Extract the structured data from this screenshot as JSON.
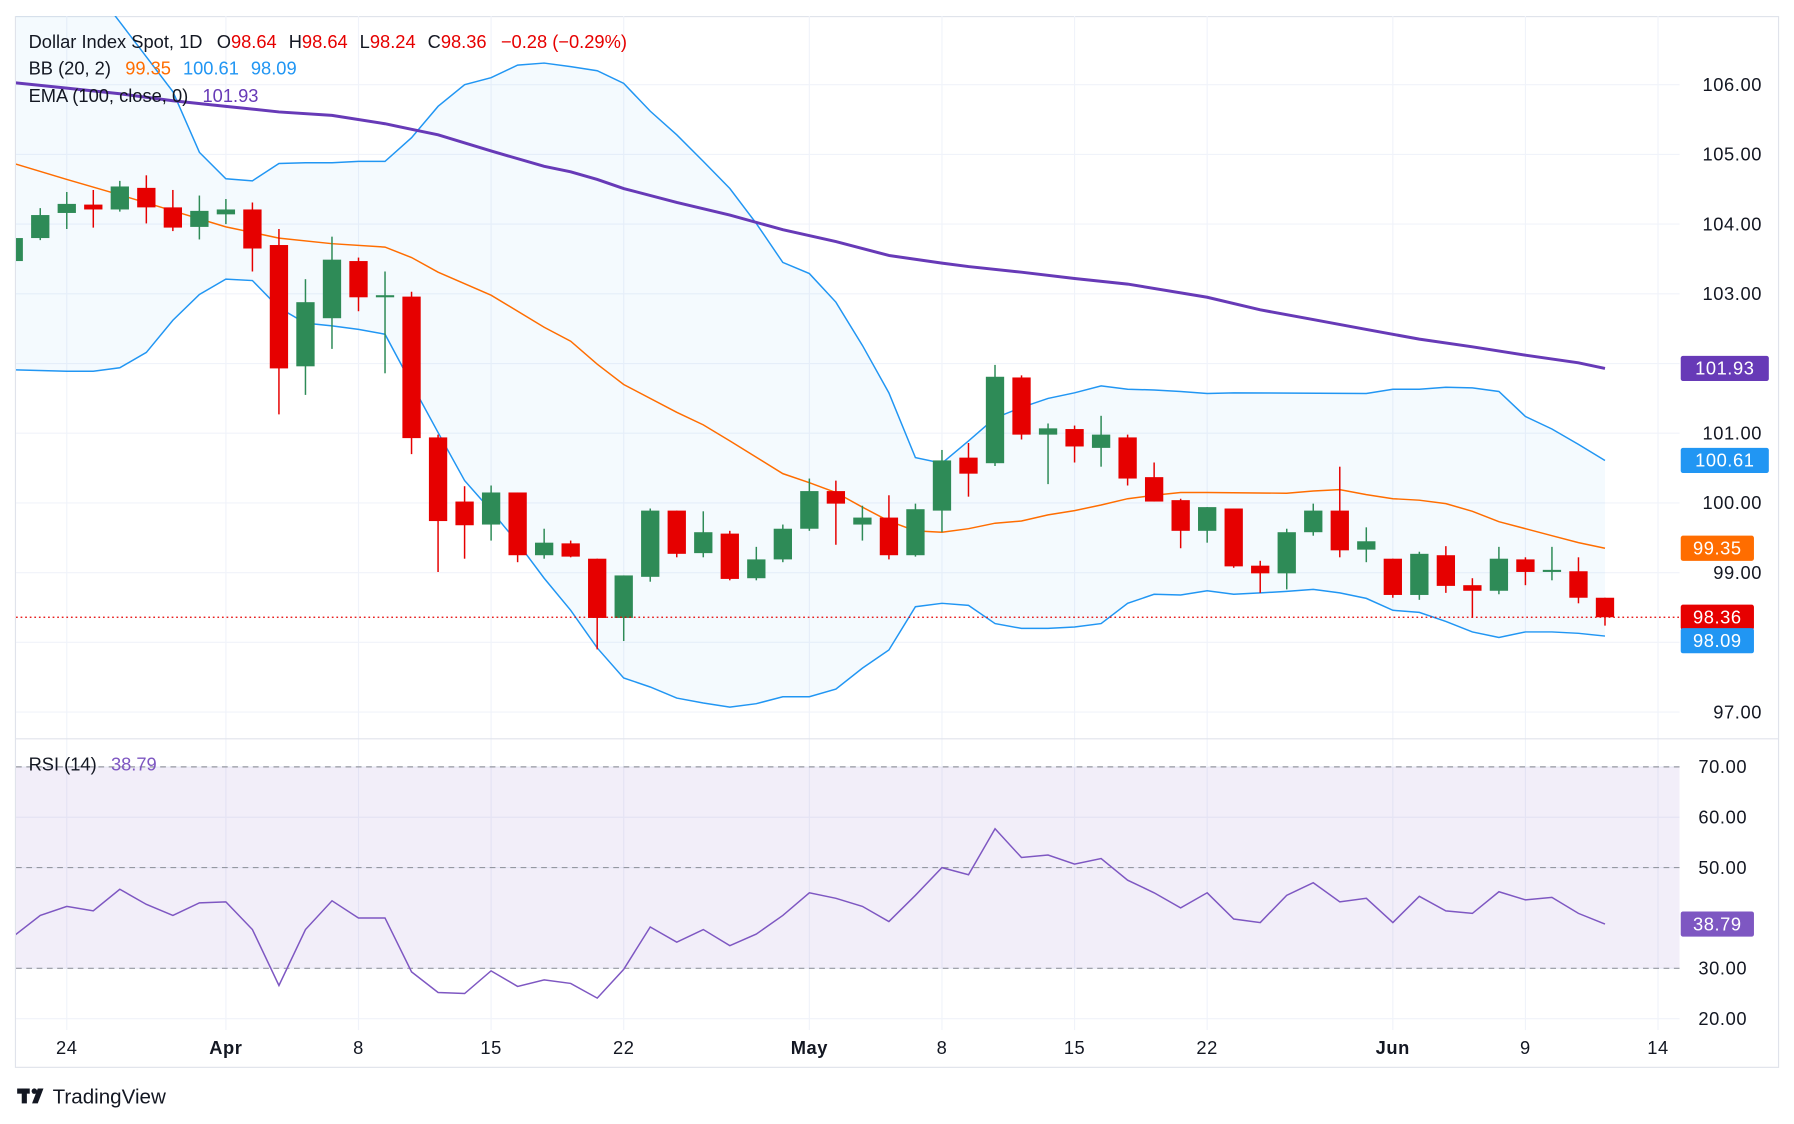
{
  "legend": {
    "title": "Dollar Index Spot, 1D",
    "o_label": "O",
    "o_value": "98.64",
    "h_label": "H",
    "h_value": "98.64",
    "l_label": "L",
    "l_value": "98.24",
    "c_label": "C",
    "c_value": "98.36",
    "change": "−0.28 (−0.29%)",
    "bb_label": "BB (20, 2)",
    "bb_basis": "99.35",
    "bb_upper": "100.61",
    "bb_lower": "98.09",
    "ema_label": "EMA (100, close, 0)",
    "ema_value": "101.93",
    "rsi_label": "RSI (14)",
    "rsi_value": "38.79"
  },
  "badges": {
    "ema": "101.93",
    "bb_upper": "100.61",
    "bb_basis": "99.35",
    "last_price": "98.36",
    "bb_lower": "98.09",
    "rsi": "38.79"
  },
  "colors": {
    "up": "#2e8b57",
    "down": "#e60000",
    "ema": "#673ab7",
    "bb_band": "#2196f3",
    "bb_basis": "#ff6d00",
    "rsi": "#7e57c2",
    "text": "#131722",
    "grid": "#f0f3fa",
    "border": "#e0e3eb"
  },
  "branding": {
    "logo_text": "TradingView"
  },
  "chart_data": {
    "type": "candlestick",
    "symbol": "Dollar Index Spot",
    "interval": "1D",
    "grid": true,
    "price_axis": {
      "ticks": [
        "106.00",
        "105.00",
        "104.00",
        "103.00",
        "101.00",
        "100.00",
        "99.00",
        "97.00"
      ],
      "values": [
        106,
        105,
        104,
        103,
        101,
        100,
        99,
        97
      ],
      "range": [
        96.6,
        106.95
      ]
    },
    "time_axis": {
      "ticks": [
        {
          "label": "24",
          "date": "03-24"
        },
        {
          "label": "Apr",
          "date": "04-01"
        },
        {
          "label": "8",
          "date": "04-08"
        },
        {
          "label": "15",
          "date": "04-15"
        },
        {
          "label": "22",
          "date": "04-22"
        },
        {
          "label": "May",
          "date": "05-01"
        },
        {
          "label": "8",
          "date": "05-08"
        },
        {
          "label": "15",
          "date": "05-15"
        },
        {
          "label": "22",
          "date": "05-22"
        },
        {
          "label": "Jun",
          "date": "06-02"
        },
        {
          "label": "9",
          "date": "06-09"
        },
        {
          "label": "14",
          "date": "06-14"
        }
      ]
    },
    "dates": [
      "03-20",
      "03-21",
      "03-24",
      "03-25",
      "03-26",
      "03-27",
      "03-28",
      "03-31",
      "04-01",
      "04-02",
      "04-03",
      "04-04",
      "04-07",
      "04-08",
      "04-09",
      "04-10",
      "04-11",
      "04-14",
      "04-15",
      "04-16",
      "04-17",
      "04-18",
      "04-21",
      "04-22",
      "04-23",
      "04-24",
      "04-25",
      "04-28",
      "04-29",
      "04-30",
      "05-01",
      "05-02",
      "05-05",
      "05-06",
      "05-07",
      "05-08",
      "05-09",
      "05-12",
      "05-13",
      "05-14",
      "05-15",
      "05-16",
      "05-19",
      "05-20",
      "05-21",
      "05-22",
      "05-23",
      "05-26",
      "05-27",
      "05-28",
      "05-29",
      "05-30",
      "06-02",
      "06-03",
      "06-04",
      "06-05",
      "06-06",
      "06-09",
      "06-10",
      "06-11",
      "06-12"
    ],
    "ohlc": [
      [
        103.47,
        103.85,
        103.44,
        103.8
      ],
      [
        103.8,
        104.23,
        103.77,
        104.13
      ],
      [
        104.16,
        104.46,
        103.93,
        104.29
      ],
      [
        104.28,
        104.49,
        103.95,
        104.21
      ],
      [
        104.21,
        104.62,
        104.18,
        104.54
      ],
      [
        104.52,
        104.7,
        104.01,
        104.24
      ],
      [
        104.24,
        104.49,
        103.9,
        103.95
      ],
      [
        103.96,
        104.41,
        103.78,
        104.19
      ],
      [
        104.14,
        104.36,
        104.0,
        104.21
      ],
      [
        104.21,
        104.31,
        103.32,
        103.65
      ],
      [
        103.7,
        103.93,
        101.27,
        101.93
      ],
      [
        101.96,
        103.21,
        101.55,
        102.88
      ],
      [
        102.65,
        103.82,
        102.21,
        103.49
      ],
      [
        103.47,
        103.52,
        102.75,
        102.95
      ],
      [
        102.95,
        103.32,
        101.86,
        102.98
      ],
      [
        102.96,
        103.03,
        100.7,
        100.93
      ],
      [
        100.94,
        100.98,
        99.01,
        99.74
      ],
      [
        100.02,
        100.24,
        99.2,
        99.68
      ],
      [
        99.69,
        100.25,
        99.46,
        100.15
      ],
      [
        100.15,
        100.15,
        99.15,
        99.25
      ],
      [
        99.25,
        99.63,
        99.2,
        99.43
      ],
      [
        99.42,
        99.46,
        99.22,
        99.23
      ],
      [
        99.2,
        99.2,
        97.9,
        98.35
      ],
      [
        98.35,
        98.96,
        98.02,
        98.96
      ],
      [
        98.94,
        99.92,
        98.87,
        99.89
      ],
      [
        99.89,
        99.89,
        99.22,
        99.27
      ],
      [
        99.28,
        99.88,
        99.22,
        99.58
      ],
      [
        99.56,
        99.6,
        98.89,
        98.91
      ],
      [
        98.92,
        99.37,
        98.89,
        99.19
      ],
      [
        99.19,
        99.69,
        99.15,
        99.63
      ],
      [
        99.63,
        100.35,
        99.6,
        100.17
      ],
      [
        100.17,
        100.32,
        99.4,
        99.99
      ],
      [
        99.69,
        99.96,
        99.46,
        99.79
      ],
      [
        99.79,
        100.11,
        99.19,
        99.25
      ],
      [
        99.25,
        99.99,
        99.23,
        99.91
      ],
      [
        99.89,
        100.76,
        99.58,
        100.61
      ],
      [
        100.65,
        100.86,
        100.09,
        100.42
      ],
      [
        100.57,
        101.98,
        100.53,
        101.81
      ],
      [
        101.8,
        101.83,
        100.91,
        100.98
      ],
      [
        100.98,
        101.14,
        100.27,
        101.07
      ],
      [
        101.06,
        101.11,
        100.58,
        100.81
      ],
      [
        100.79,
        101.25,
        100.52,
        100.98
      ],
      [
        100.94,
        100.98,
        100.25,
        100.35
      ],
      [
        100.37,
        100.58,
        100.02,
        100.02
      ],
      [
        100.04,
        100.06,
        99.35,
        99.6
      ],
      [
        99.6,
        99.94,
        99.43,
        99.94
      ],
      [
        99.92,
        99.92,
        99.07,
        99.09
      ],
      [
        99.1,
        99.17,
        98.71,
        98.99
      ],
      [
        98.99,
        99.63,
        98.76,
        99.58
      ],
      [
        99.58,
        99.99,
        99.53,
        99.89
      ],
      [
        99.89,
        100.52,
        99.22,
        99.32
      ],
      [
        99.33,
        99.65,
        99.15,
        99.45
      ],
      [
        99.2,
        99.2,
        98.64,
        98.68
      ],
      [
        98.68,
        99.3,
        98.61,
        99.27
      ],
      [
        99.25,
        99.38,
        98.71,
        98.81
      ],
      [
        98.82,
        98.92,
        98.35,
        98.74
      ],
      [
        98.74,
        99.37,
        98.69,
        99.2
      ],
      [
        99.19,
        99.22,
        98.82,
        99.01
      ],
      [
        99.01,
        99.37,
        98.89,
        99.04
      ],
      [
        99.02,
        99.22,
        98.56,
        98.64
      ],
      [
        98.64,
        98.64,
        98.24,
        98.36
      ]
    ],
    "last_price": 98.36,
    "ema_100": [
      [
        "03-20",
        106.03
      ],
      [
        "03-24",
        105.95
      ],
      [
        "03-26",
        105.87
      ],
      [
        "03-28",
        105.77
      ],
      [
        "04-01",
        105.69
      ],
      [
        "04-03",
        105.61
      ],
      [
        "04-07",
        105.56
      ],
      [
        "04-09",
        105.44
      ],
      [
        "04-10",
        105.36
      ],
      [
        "04-11",
        105.28
      ],
      [
        "04-15",
        105.05
      ],
      [
        "04-17",
        104.83
      ],
      [
        "04-18",
        104.75
      ],
      [
        "04-21",
        104.64
      ],
      [
        "04-22",
        104.51
      ],
      [
        "04-24",
        104.31
      ],
      [
        "04-28",
        104.13
      ],
      [
        "04-30",
        103.92
      ],
      [
        "05-02",
        103.75
      ],
      [
        "05-06",
        103.55
      ],
      [
        "05-08",
        103.44
      ],
      [
        "05-09",
        103.39
      ],
      [
        "05-13",
        103.31
      ],
      [
        "05-15",
        103.22
      ],
      [
        "05-19",
        103.14
      ],
      [
        "05-22",
        102.95
      ],
      [
        "05-26",
        102.77
      ],
      [
        "05-28",
        102.63
      ],
      [
        "05-30",
        102.49
      ],
      [
        "06-03",
        102.35
      ],
      [
        "06-05",
        102.24
      ],
      [
        "06-09",
        102.12
      ],
      [
        "06-11",
        102.01
      ],
      [
        "06-12",
        101.93
      ]
    ],
    "bb_upper": [
      [
        "03-20",
        108.87
      ],
      [
        "03-21",
        108.38
      ],
      [
        "03-24",
        107.89
      ],
      [
        "03-25",
        107.4
      ],
      [
        "03-26",
        106.9
      ],
      [
        "03-28",
        105.9
      ],
      [
        "03-31",
        105.03
      ],
      [
        "04-01",
        104.65
      ],
      [
        "04-02",
        104.62
      ],
      [
        "04-03",
        104.87
      ],
      [
        "04-04",
        104.88
      ],
      [
        "04-07",
        104.88
      ],
      [
        "04-08",
        104.9
      ],
      [
        "04-09",
        104.9
      ],
      [
        "04-10",
        105.24
      ],
      [
        "04-11",
        105.69
      ],
      [
        "04-14",
        106.0
      ],
      [
        "04-15",
        106.1
      ],
      [
        "04-16",
        106.28
      ],
      [
        "04-17",
        106.31
      ],
      [
        "04-18",
        106.26
      ],
      [
        "04-21",
        106.2
      ],
      [
        "04-22",
        106.02
      ],
      [
        "04-23",
        105.62
      ],
      [
        "04-24",
        105.28
      ],
      [
        "04-25",
        104.9
      ],
      [
        "04-28",
        104.51
      ],
      [
        "04-29",
        104.01
      ],
      [
        "04-30",
        103.45
      ],
      [
        "05-01",
        103.29
      ],
      [
        "05-02",
        102.88
      ],
      [
        "05-05",
        102.26
      ],
      [
        "05-06",
        101.58
      ],
      [
        "05-07",
        100.65
      ],
      [
        "05-08",
        100.57
      ],
      [
        "05-09",
        100.89
      ],
      [
        "05-12",
        101.22
      ],
      [
        "05-13",
        101.37
      ],
      [
        "05-14",
        101.5
      ],
      [
        "05-15",
        101.58
      ],
      [
        "05-16",
        101.68
      ],
      [
        "05-19",
        101.63
      ],
      [
        "05-20",
        101.62
      ],
      [
        "05-21",
        101.6
      ],
      [
        "05-22",
        101.57
      ],
      [
        "05-23",
        101.58
      ],
      [
        "05-30",
        101.57
      ],
      [
        "06-02",
        101.63
      ],
      [
        "06-03",
        101.63
      ],
      [
        "06-04",
        101.66
      ],
      [
        "06-05",
        101.65
      ],
      [
        "06-06",
        101.6
      ],
      [
        "06-09",
        101.24
      ],
      [
        "06-10",
        101.06
      ],
      [
        "06-11",
        100.84
      ],
      [
        "06-12",
        100.61
      ]
    ],
    "bb_basis": [
      [
        "03-20",
        104.87
      ],
      [
        "03-24",
        104.64
      ],
      [
        "03-26",
        104.42
      ],
      [
        "03-28",
        104.19
      ],
      [
        "04-01",
        103.96
      ],
      [
        "04-03",
        103.8
      ],
      [
        "04-07",
        103.72
      ],
      [
        "04-09",
        103.67
      ],
      [
        "04-10",
        103.52
      ],
      [
        "04-11",
        103.31
      ],
      [
        "04-15",
        102.98
      ],
      [
        "04-17",
        102.52
      ],
      [
        "04-18",
        102.32
      ],
      [
        "04-21",
        101.99
      ],
      [
        "04-22",
        101.7
      ],
      [
        "04-24",
        101.3
      ],
      [
        "04-25",
        101.12
      ],
      [
        "04-28",
        100.89
      ],
      [
        "04-30",
        100.42
      ],
      [
        "05-01",
        100.29
      ],
      [
        "05-02",
        100.15
      ],
      [
        "05-05",
        99.94
      ],
      [
        "05-06",
        99.74
      ],
      [
        "05-07",
        99.6
      ],
      [
        "05-08",
        99.58
      ],
      [
        "05-09",
        99.63
      ],
      [
        "05-12",
        99.71
      ],
      [
        "05-13",
        99.74
      ],
      [
        "05-14",
        99.83
      ],
      [
        "05-15",
        99.89
      ],
      [
        "05-16",
        99.97
      ],
      [
        "05-19",
        100.06
      ],
      [
        "05-20",
        100.11
      ],
      [
        "05-21",
        100.15
      ],
      [
        "05-22",
        100.15
      ],
      [
        "05-27",
        100.14
      ],
      [
        "05-28",
        100.17
      ],
      [
        "05-29",
        100.19
      ],
      [
        "05-30",
        100.12
      ],
      [
        "06-02",
        100.06
      ],
      [
        "06-03",
        100.04
      ],
      [
        "06-04",
        99.99
      ],
      [
        "06-05",
        99.88
      ],
      [
        "06-06",
        99.73
      ],
      [
        "06-09",
        99.63
      ],
      [
        "06-10",
        99.53
      ],
      [
        "06-11",
        99.43
      ],
      [
        "06-12",
        99.35
      ]
    ],
    "bb_lower": [
      [
        "03-20",
        101.91
      ],
      [
        "03-24",
        101.89
      ],
      [
        "03-25",
        101.89
      ],
      [
        "03-26",
        101.94
      ],
      [
        "03-27",
        102.16
      ],
      [
        "03-28",
        102.62
      ],
      [
        "03-31",
        102.99
      ],
      [
        "04-01",
        103.21
      ],
      [
        "04-02",
        103.19
      ],
      [
        "04-03",
        102.8
      ],
      [
        "04-04",
        102.58
      ],
      [
        "04-07",
        102.54
      ],
      [
        "04-08",
        102.49
      ],
      [
        "04-09",
        102.42
      ],
      [
        "04-10",
        101.71
      ],
      [
        "04-11",
        101.01
      ],
      [
        "04-14",
        100.32
      ],
      [
        "04-15",
        99.89
      ],
      [
        "04-16",
        99.43
      ],
      [
        "04-17",
        98.92
      ],
      [
        "04-18",
        98.46
      ],
      [
        "04-21",
        97.92
      ],
      [
        "04-22",
        97.49
      ],
      [
        "04-23",
        97.36
      ],
      [
        "04-24",
        97.2
      ],
      [
        "04-25",
        97.13
      ],
      [
        "04-28",
        97.07
      ],
      [
        "04-29",
        97.12
      ],
      [
        "04-30",
        97.22
      ],
      [
        "05-01",
        97.22
      ],
      [
        "05-02",
        97.33
      ],
      [
        "05-05",
        97.63
      ],
      [
        "05-06",
        97.89
      ],
      [
        "05-07",
        98.51
      ],
      [
        "05-08",
        98.56
      ],
      [
        "05-09",
        98.53
      ],
      [
        "05-12",
        98.27
      ],
      [
        "05-13",
        98.2
      ],
      [
        "05-14",
        98.2
      ],
      [
        "05-15",
        98.22
      ],
      [
        "05-16",
        98.27
      ],
      [
        "05-19",
        98.56
      ],
      [
        "05-20",
        98.69
      ],
      [
        "05-21",
        98.68
      ],
      [
        "05-22",
        98.74
      ],
      [
        "05-23",
        98.69
      ],
      [
        "05-26",
        98.71
      ],
      [
        "05-27",
        98.73
      ],
      [
        "05-28",
        98.76
      ],
      [
        "05-29",
        98.71
      ],
      [
        "05-30",
        98.63
      ],
      [
        "06-02",
        98.46
      ],
      [
        "06-03",
        98.43
      ],
      [
        "06-04",
        98.3
      ],
      [
        "06-05",
        98.15
      ],
      [
        "06-06",
        98.07
      ],
      [
        "06-09",
        98.15
      ],
      [
        "06-10",
        98.15
      ],
      [
        "06-11",
        98.13
      ],
      [
        "06-12",
        98.09
      ]
    ],
    "rsi": {
      "ticks": [
        "70.00",
        "60.00",
        "50.00",
        "30.00",
        "20.00"
      ],
      "tick_values": [
        70,
        60,
        50,
        30,
        20
      ],
      "levels": [
        70,
        50,
        30
      ],
      "band": [
        30,
        70
      ],
      "values": [
        36.4,
        40.5,
        42.3,
        41.4,
        45.7,
        42.7,
        40.5,
        43.0,
        43.2,
        37.7,
        26.6,
        37.7,
        43.4,
        40.0,
        40.0,
        29.3,
        25.2,
        25.0,
        29.5,
        26.4,
        27.7,
        27.0,
        24.1,
        29.8,
        38.2,
        35.2,
        37.7,
        34.5,
        36.8,
        40.5,
        45.0,
        43.9,
        42.3,
        39.3,
        44.5,
        50.0,
        48.6,
        57.7,
        52.0,
        52.5,
        50.7,
        51.8,
        47.5,
        45.0,
        42.0,
        45.0,
        39.8,
        39.1,
        44.5,
        47.0,
        43.2,
        43.9,
        39.1,
        44.3,
        41.4,
        40.9,
        45.2,
        43.6,
        44.1,
        40.9,
        38.79
      ]
    }
  }
}
